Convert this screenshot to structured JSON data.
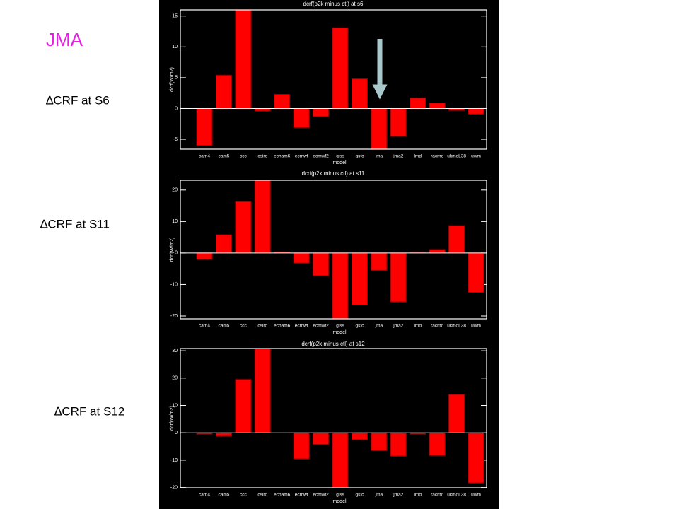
{
  "slide": {
    "title": "JMA",
    "labels": [
      "∆CRF at S6",
      "∆CRF at S11",
      "∆CRF at S12"
    ]
  },
  "chart_data": [
    {
      "type": "bar",
      "title": "dcrf(p2k minus ctl) at s6",
      "annotation": "S6",
      "x_label": "model",
      "y_label": "dcrf(W/m2)",
      "categories": [
        "cam4",
        "cam5",
        "ccc",
        "csiro",
        "echam6",
        "ecmwf",
        "ecmwf2",
        "giss",
        "gsfc",
        "jma",
        "jma2",
        "lmd",
        "racmo",
        "ukmoL38",
        "uwm"
      ],
      "values": [
        -6.0,
        5.4,
        17,
        -0.4,
        2.3,
        -3.1,
        -1.3,
        13.1,
        4.8,
        -7,
        -4.5,
        1.7,
        0.9,
        -0.3,
        -0.9
      ],
      "color": "#ff0000",
      "ylim": [
        -6.6,
        16
      ],
      "yticks": [
        -5,
        0,
        5,
        10,
        15
      ],
      "grid": false
    },
    {
      "type": "bar",
      "title": "dcrf(p2k minus ctl) at s11",
      "annotation": "S11",
      "x_label": "model",
      "y_label": "dcrf(W/m2)",
      "categories": [
        "cam4",
        "cam5",
        "ccc",
        "csiro",
        "echam6",
        "ecmwf",
        "ecmwf2",
        "giss",
        "gsfc",
        "jma",
        "jma2",
        "lmd",
        "racmo",
        "ukmoL38",
        "uwm"
      ],
      "values": [
        -2.0,
        5.8,
        16.3,
        24,
        0.3,
        -3.2,
        -7.2,
        -21,
        -16.5,
        -5.5,
        -15.5,
        0.2,
        1.1,
        8.7,
        -12.5
      ],
      "color": "#ff0000",
      "ylim": [
        -20.9,
        23.1
      ],
      "yticks": [
        -20,
        -10,
        0,
        10,
        20
      ],
      "grid": false
    },
    {
      "type": "bar",
      "title": "dcrf(p2k minus ctl) at s12",
      "annotation": "S12",
      "x_label": "model",
      "y_label": "dcrf(W/m2)",
      "categories": [
        "cam4",
        "cam5",
        "ccc",
        "csiro",
        "echam6",
        "ecmwf",
        "ecmwf2",
        "giss",
        "gsfc",
        "jma",
        "jma2",
        "lmd",
        "racmo",
        "ukmoL38",
        "uwm"
      ],
      "values": [
        -0.5,
        -1.2,
        19.5,
        31,
        0,
        -9.5,
        -4.2,
        -21,
        -2.5,
        -6.5,
        -8.5,
        -0.5,
        -8.3,
        14,
        -18.3
      ],
      "color": "#ff0000",
      "ylim": [
        -20.1,
        30.8
      ],
      "yticks": [
        -20,
        -10,
        0,
        10,
        20,
        30
      ],
      "grid": false
    }
  ]
}
